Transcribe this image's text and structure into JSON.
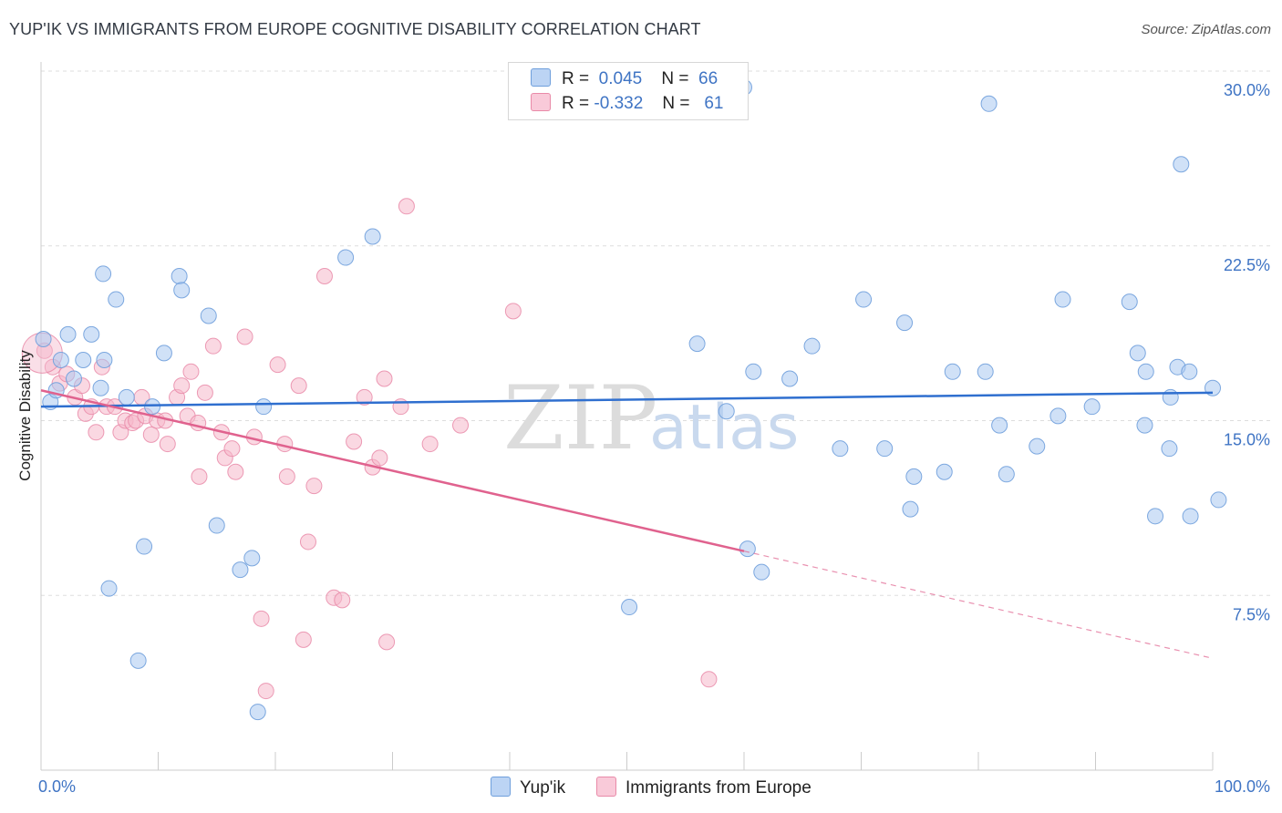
{
  "title": "YUP'IK VS IMMIGRANTS FROM EUROPE COGNITIVE DISABILITY CORRELATION CHART",
  "source": "Source: ZipAtlas.com",
  "watermark": {
    "zip": "ZIP",
    "atlas": "atlas"
  },
  "legend": {
    "row1": {
      "r_label": "R =",
      "r_value": "0.045",
      "n_label": "N =",
      "n_value": "66"
    },
    "row2": {
      "r_label": "R =",
      "r_value": "-0.332",
      "n_label": "N =",
      "n_value": "61"
    }
  },
  "colors": {
    "blue_fill": "#a9c8f0",
    "blue_stroke": "#6f9fdc",
    "blue_line": "#2f6fcf",
    "pink_fill": "#f5b8cb",
    "pink_stroke": "#e98aa8",
    "pink_line": "#e0628e",
    "tick": "#3f74c4"
  },
  "chart_data": {
    "type": "scatter",
    "title": "YUP'IK VS IMMIGRANTS FROM EUROPE COGNITIVE DISABILITY CORRELATION CHART",
    "xlabel": "",
    "ylabel": "Cognitive Disability",
    "xlim": [
      0,
      100
    ],
    "ylim": [
      0,
      30
    ],
    "x_tick_labels": [
      "0.0%",
      "100.0%"
    ],
    "y_ticks": [
      7.5,
      15.0,
      22.5,
      30.0
    ],
    "y_tick_labels": [
      "7.5%",
      "15.0%",
      "22.5%",
      "30.0%"
    ],
    "grid": true,
    "legend_position": "top-center",
    "series": [
      {
        "name": "Yup'ik",
        "R": 0.045,
        "N": 66,
        "trend": {
          "x": [
            0,
            100
          ],
          "y": [
            15.6,
            16.2
          ]
        },
        "points": [
          [
            0.2,
            18.5
          ],
          [
            0.8,
            15.8
          ],
          [
            1.3,
            16.3
          ],
          [
            1.7,
            17.6
          ],
          [
            2.3,
            18.7
          ],
          [
            2.8,
            16.8
          ],
          [
            3.6,
            17.6
          ],
          [
            4.3,
            18.7
          ],
          [
            5.1,
            16.4
          ],
          [
            5.4,
            17.6
          ],
          [
            5.3,
            21.3
          ],
          [
            5.8,
            7.8
          ],
          [
            6.4,
            20.2
          ],
          [
            7.3,
            16.0
          ],
          [
            8.3,
            4.7
          ],
          [
            8.8,
            9.6
          ],
          [
            9.5,
            15.6
          ],
          [
            10.5,
            17.9
          ],
          [
            11.8,
            21.2
          ],
          [
            12.0,
            20.6
          ],
          [
            14.3,
            19.5
          ],
          [
            15.0,
            10.5
          ],
          [
            17.0,
            8.6
          ],
          [
            18.0,
            9.1
          ],
          [
            18.5,
            2.5
          ],
          [
            19.0,
            15.6
          ],
          [
            26.0,
            22.0
          ],
          [
            28.3,
            22.9
          ],
          [
            60.0,
            29.3
          ],
          [
            50.2,
            7.0
          ],
          [
            56.0,
            18.3
          ],
          [
            58.5,
            15.4
          ],
          [
            60.3,
            9.5
          ],
          [
            60.8,
            17.1
          ],
          [
            61.5,
            8.5
          ],
          [
            63.9,
            16.8
          ],
          [
            65.8,
            18.2
          ],
          [
            68.2,
            13.8
          ],
          [
            70.2,
            20.2
          ],
          [
            72.0,
            13.8
          ],
          [
            73.7,
            19.2
          ],
          [
            74.2,
            11.2
          ],
          [
            74.5,
            12.6
          ],
          [
            77.1,
            12.8
          ],
          [
            77.8,
            17.1
          ],
          [
            80.6,
            17.1
          ],
          [
            80.9,
            28.6
          ],
          [
            81.8,
            14.8
          ],
          [
            82.4,
            12.7
          ],
          [
            85.0,
            13.9
          ],
          [
            86.8,
            15.2
          ],
          [
            87.2,
            20.2
          ],
          [
            89.7,
            15.6
          ],
          [
            92.9,
            20.1
          ],
          [
            93.6,
            17.9
          ],
          [
            94.2,
            14.8
          ],
          [
            94.3,
            17.1
          ],
          [
            95.1,
            10.9
          ],
          [
            96.3,
            13.8
          ],
          [
            96.4,
            16.0
          ],
          [
            97.0,
            17.3
          ],
          [
            97.3,
            26.0
          ],
          [
            98.0,
            17.1
          ],
          [
            98.1,
            10.9
          ],
          [
            100.0,
            16.4
          ],
          [
            100.5,
            11.6
          ]
        ]
      },
      {
        "name": "Immigrants from Europe",
        "R": -0.332,
        "N": 61,
        "trend": {
          "x": [
            0,
            60
          ],
          "y": [
            16.3,
            9.4
          ]
        },
        "trend_dashed": {
          "x": [
            60,
            100
          ],
          "y": [
            9.4,
            4.8
          ]
        },
        "points": [
          [
            0.3,
            18.0
          ],
          [
            1.0,
            17.3
          ],
          [
            1.6,
            16.6
          ],
          [
            2.2,
            17.0
          ],
          [
            2.9,
            16.0
          ],
          [
            3.5,
            16.5
          ],
          [
            3.8,
            15.3
          ],
          [
            4.3,
            15.6
          ],
          [
            4.7,
            14.5
          ],
          [
            5.2,
            17.3
          ],
          [
            5.6,
            15.6
          ],
          [
            6.3,
            15.6
          ],
          [
            6.8,
            14.5
          ],
          [
            7.2,
            15.0
          ],
          [
            7.8,
            14.9
          ],
          [
            8.1,
            15.0
          ],
          [
            8.6,
            16.0
          ],
          [
            8.9,
            15.2
          ],
          [
            9.4,
            14.4
          ],
          [
            9.9,
            15.0
          ],
          [
            10.6,
            15.0
          ],
          [
            10.8,
            14.0
          ],
          [
            11.6,
            16.0
          ],
          [
            12.0,
            16.5
          ],
          [
            12.5,
            15.2
          ],
          [
            12.8,
            17.1
          ],
          [
            13.4,
            14.9
          ],
          [
            13.5,
            12.6
          ],
          [
            14.0,
            16.2
          ],
          [
            14.7,
            18.2
          ],
          [
            15.4,
            14.5
          ],
          [
            15.7,
            13.4
          ],
          [
            16.3,
            13.8
          ],
          [
            16.6,
            12.8
          ],
          [
            17.4,
            18.6
          ],
          [
            18.2,
            14.3
          ],
          [
            18.8,
            6.5
          ],
          [
            19.2,
            3.4
          ],
          [
            20.2,
            17.4
          ],
          [
            20.8,
            14.0
          ],
          [
            21.0,
            12.6
          ],
          [
            22.0,
            16.5
          ],
          [
            22.4,
            5.6
          ],
          [
            22.8,
            9.8
          ],
          [
            23.3,
            12.2
          ],
          [
            24.2,
            21.2
          ],
          [
            25.0,
            7.4
          ],
          [
            25.7,
            7.3
          ],
          [
            26.7,
            14.1
          ],
          [
            27.6,
            16.0
          ],
          [
            28.3,
            13.0
          ],
          [
            28.9,
            13.4
          ],
          [
            29.3,
            16.8
          ],
          [
            29.5,
            5.5
          ],
          [
            30.7,
            15.6
          ],
          [
            31.2,
            24.2
          ],
          [
            33.2,
            14.0
          ],
          [
            35.8,
            14.8
          ],
          [
            40.3,
            19.7
          ],
          [
            57.0,
            3.9
          ],
          [
            0.1,
            17.9
          ]
        ]
      }
    ]
  },
  "bottom_legend": {
    "item1": "Yup'ik",
    "item2": "Immigrants from Europe"
  }
}
